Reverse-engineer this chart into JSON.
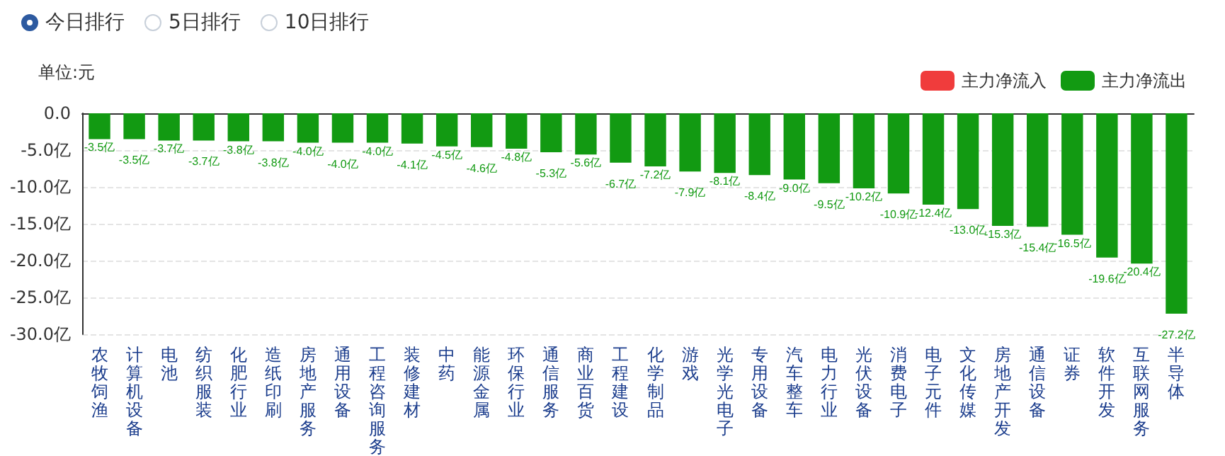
{
  "chart_data": {
    "type": "bar",
    "ylabel": "单位:元",
    "annotations": [
      "今日排行",
      "5日排行",
      "10日排行"
    ],
    "categories": [
      "农牧饲渔",
      "计算机设备",
      "电池",
      "纺织服装",
      "化肥行业",
      "造纸印刷",
      "房地产服务",
      "通用设备",
      "工程咨询服务",
      "装修建材",
      "中药",
      "能源金属",
      "环保行业",
      "通信服务",
      "商业百货",
      "工程建设",
      "化学制品",
      "游戏",
      "光学光电子",
      "专用设备",
      "汽车整车",
      "电力行业",
      "光伏设备",
      "消费电子",
      "电子元件",
      "文化传媒",
      "房地产开发",
      "通信设备",
      "证券",
      "软件开发",
      "互联网服务",
      "半导体"
    ],
    "series": [
      {
        "name": "主力净流入",
        "color": "#f03c3c",
        "values": [
          null,
          null,
          null,
          null,
          null,
          null,
          null,
          null,
          null,
          null,
          null,
          null,
          null,
          null,
          null,
          null,
          null,
          null,
          null,
          null,
          null,
          null,
          null,
          null,
          null,
          null,
          null,
          null,
          null,
          null,
          null,
          null
        ]
      },
      {
        "name": "主力净流出",
        "color": "#129a12",
        "values": [
          -3.5,
          -3.5,
          -3.7,
          -3.7,
          -3.8,
          -3.8,
          -4.0,
          -4.0,
          -4.0,
          -4.1,
          -4.5,
          -4.6,
          -4.8,
          -5.3,
          -5.6,
          -6.7,
          -7.2,
          -7.9,
          -8.1,
          -8.4,
          -9.0,
          -9.5,
          -10.2,
          -10.9,
          -12.4,
          -13.0,
          -15.3,
          -15.4,
          -16.5,
          -19.6,
          -20.4,
          -27.2
        ],
        "value_labels": [
          "-3.5亿",
          "-3.5亿",
          "-3.7亿",
          "-3.7亿",
          "-3.8亿",
          "-3.8亿",
          "-4.0亿",
          "-4.0亿",
          "-4.0亿",
          "-4.1亿",
          "-4.5亿",
          "-4.6亿",
          "-4.8亿",
          "-5.3亿",
          "-5.6亿",
          "-6.7亿",
          "-7.2亿",
          "-7.9亿",
          "-8.1亿",
          "-8.4亿",
          "-9.0亿",
          "-9.5亿",
          "-10.2亿",
          "-10.9亿",
          "-12.4亿",
          "-13.0亿",
          "-15.3亿",
          "-15.4亿",
          "-16.5亿",
          "-19.6亿",
          "-20.4亿",
          "-27.2亿"
        ]
      }
    ],
    "ylim": [
      -30,
      0
    ],
    "yticks": [
      {
        "value": -30,
        "label": "-30.0亿"
      },
      {
        "value": -25,
        "label": "-25.0亿"
      },
      {
        "value": -20,
        "label": "-20.0亿"
      },
      {
        "value": -15,
        "label": "-15.0亿"
      },
      {
        "value": -10,
        "label": "-10.0亿"
      },
      {
        "value": -5,
        "label": "-5.0亿"
      },
      {
        "value": 0,
        "label": "0.0"
      }
    ],
    "grid": "y",
    "legend": "top right"
  }
}
